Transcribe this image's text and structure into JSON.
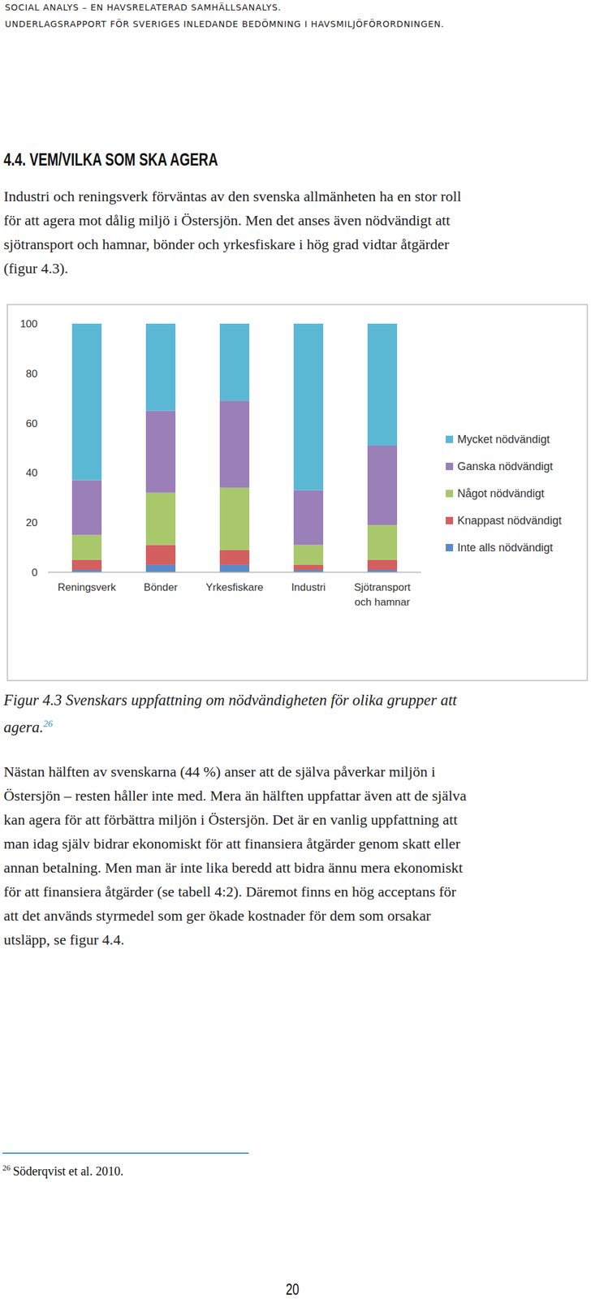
{
  "chart_data": {
    "type": "bar",
    "stacked": true,
    "legend": "right",
    "grid": false,
    "categories": [
      "Reningsverk",
      "Bönder",
      "Yrkesfiskare",
      "Industri",
      "Sjötransport och hamnar"
    ],
    "series": [
      {
        "name": "Inte alls nödvändigt",
        "color": "#5b8ac7",
        "values": [
          1,
          3,
          3,
          1,
          1
        ]
      },
      {
        "name": "Knappast nödvändigt",
        "color": "#d35f5f",
        "values": [
          4,
          8,
          6,
          2,
          4
        ]
      },
      {
        "name": "Något nödvändigt",
        "color": "#a9c86b",
        "values": [
          10,
          21,
          25,
          8,
          14
        ]
      },
      {
        "name": "Ganska nödvändigt",
        "color": "#9a7fb8",
        "values": [
          22,
          33,
          35,
          22,
          32
        ]
      },
      {
        "name": "Mycket nödvändigt",
        "color": "#5bb8d4",
        "values": [
          63,
          35,
          31,
          67,
          49
        ]
      }
    ],
    "ylim": [
      0,
      100
    ],
    "yticks": [
      0,
      20,
      40,
      60,
      80,
      100
    ]
  },
  "document": {
    "header": {
      "line1": "SOCIAL ANALYS – EN HAVSRELATERAD SAMHÄLLSANALYS.",
      "line2": "UNDERLAGSRAPPORT FÖR SVERIGES INLEDANDE BEDÖMNING I HAVSMILJÖFÖRORDNINGEN."
    },
    "heading": "4.4. VEM/VILKA SOM SKA AGERA",
    "paragraph1": [
      "Industri och reningsverk förväntas av den svenska allmänheten ha en stor roll",
      "för att agera mot dålig miljö i Östersjön. Men det anses även nödvändigt att",
      "sjötransport och hamnar, bönder och yrkesfiskare i hög grad vidtar åtgärder",
      "(figur 4.3)."
    ],
    "caption": {
      "lines": [
        "Figur 4.3 Svenskars uppfattning om nödvändigheten för olika grupper att",
        "agera."
      ],
      "footnote_ref": "26"
    },
    "paragraph2": [
      "Nästan hälften av svenskarna (44 %) anser att de själva påverkar miljön i",
      "Östersjön – resten håller inte med. Mera än hälften uppfattar även att de själva",
      "kan agera för att förbättra miljön i Östersjön. Det är en vanlig uppfattning att",
      "man idag själv bidrar ekonomiskt för att finansiera åtgärder genom skatt eller",
      "annan betalning. Men man är inte lika beredd att bidra ännu mera ekonomiskt",
      "för att finansiera åtgärder (se tabell 4:2). Däremot finns en hög acceptans för",
      "att det används styrmedel som ger ökade kostnader för dem som orsakar",
      "utsläpp, se figur 4.4."
    ],
    "footnote": {
      "number": "26",
      "text": "Söderqvist et al. 2010."
    },
    "page_number": "20"
  }
}
